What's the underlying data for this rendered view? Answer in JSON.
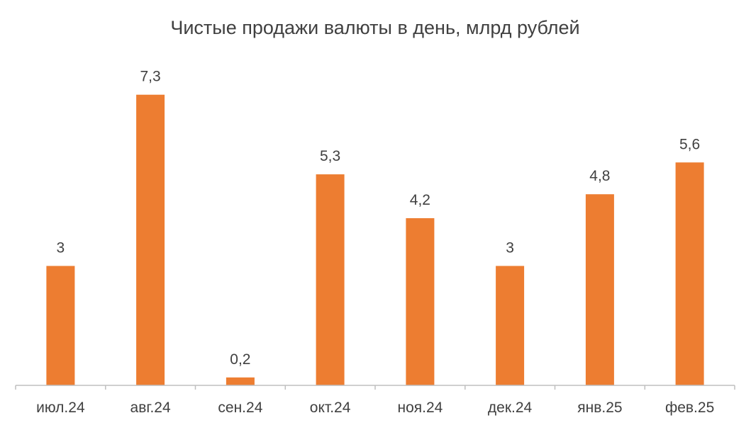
{
  "chart_data": {
    "type": "bar",
    "title": "Чистые продажи валюты в день, млрд рублей",
    "categories": [
      "июл.24",
      "авг.24",
      "сен.24",
      "окт.24",
      "ноя.24",
      "дек.24",
      "янв.25",
      "фев.25"
    ],
    "values": [
      3,
      7.3,
      0.2,
      5.3,
      4.2,
      3,
      4.8,
      5.6
    ],
    "value_labels": [
      "3",
      "7,3",
      "0,2",
      "5,3",
      "4,2",
      "3",
      "4,8",
      "5,6"
    ],
    "xlabel": "",
    "ylabel": "",
    "ylim": [
      0,
      8
    ],
    "grid": false,
    "legend": "none",
    "bar_color": "#ED7D31",
    "text_color": "#404040",
    "axis_color": "#BFBFBF"
  }
}
